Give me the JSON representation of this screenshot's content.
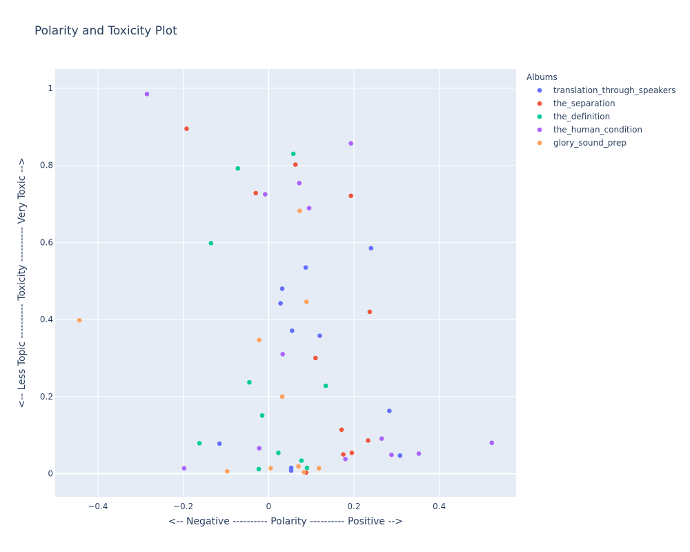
{
  "chart_data": {
    "type": "scatter",
    "title": "Polarity and Toxicity Plot",
    "xlabel": "<-- Negative ---------- Polarity ---------- Positive -->",
    "ylabel": "<-- Less Topic ---------- Toxicity ---------- Very Toxic -->",
    "xlim": [
      -0.5,
      0.58
    ],
    "ylim": [
      -0.06,
      1.05
    ],
    "xticks": [
      -0.4,
      -0.2,
      0,
      0.2,
      0.4
    ],
    "xtick_labels": [
      "−0.4",
      "−0.2",
      "0",
      "0.2",
      "0.4"
    ],
    "yticks": [
      0,
      0.2,
      0.4,
      0.6,
      0.8,
      1
    ],
    "ytick_labels": [
      "0",
      "0.2",
      "0.4",
      "0.6",
      "0.8",
      "1"
    ],
    "grid": true,
    "legend": {
      "title": "Albums",
      "placement": "top-right, outside plot"
    },
    "series": [
      {
        "name": "translation_through_speakers",
        "color": "#636efa",
        "points": [
          [
            0.24,
            0.585
          ],
          [
            0.087,
            0.535
          ],
          [
            0.032,
            0.48
          ],
          [
            0.028,
            0.442
          ],
          [
            0.055,
            0.371
          ],
          [
            0.12,
            0.358
          ],
          [
            0.283,
            0.163
          ],
          [
            -0.115,
            0.078
          ],
          [
            0.053,
            0.015
          ],
          [
            0.053,
            0.008
          ],
          [
            0.308,
            0.047
          ]
        ]
      },
      {
        "name": "the_separation",
        "color": "#ef553b",
        "points": [
          [
            -0.192,
            0.895
          ],
          [
            0.063,
            0.802
          ],
          [
            -0.03,
            0.728
          ],
          [
            0.193,
            0.721
          ],
          [
            0.237,
            0.42
          ],
          [
            0.11,
            0.3
          ],
          [
            0.171,
            0.114
          ],
          [
            0.233,
            0.086
          ],
          [
            0.175,
            0.05
          ],
          [
            0.195,
            0.054
          ],
          [
            0.088,
            0.003
          ]
        ]
      },
      {
        "name": "the_definition",
        "color": "#00cc96",
        "points": [
          [
            0.058,
            0.83
          ],
          [
            -0.072,
            0.792
          ],
          [
            -0.135,
            0.598
          ],
          [
            -0.045,
            0.237
          ],
          [
            0.134,
            0.228
          ],
          [
            -0.015,
            0.151
          ],
          [
            -0.162,
            0.079
          ],
          [
            0.023,
            0.054
          ],
          [
            0.077,
            0.034
          ],
          [
            -0.023,
            0.012
          ],
          [
            0.09,
            0.015
          ]
        ]
      },
      {
        "name": "the_human_condition",
        "color": "#ab63fa",
        "points": [
          [
            -0.285,
            0.985
          ],
          [
            0.193,
            0.857
          ],
          [
            0.072,
            0.754
          ],
          [
            -0.008,
            0.725
          ],
          [
            0.095,
            0.689
          ],
          [
            0.033,
            0.31
          ],
          [
            0.265,
            0.091
          ],
          [
            0.523,
            0.08
          ],
          [
            -0.022,
            0.066
          ],
          [
            0.288,
            0.049
          ],
          [
            0.352,
            0.052
          ],
          [
            0.18,
            0.038
          ],
          [
            -0.198,
            0.014
          ]
        ]
      },
      {
        "name": "glory_sound_prep",
        "color": "#ffa15a",
        "points": [
          [
            0.073,
            0.682
          ],
          [
            0.089,
            0.446
          ],
          [
            -0.443,
            0.398
          ],
          [
            -0.022,
            0.347
          ],
          [
            0.032,
            0.2
          ],
          [
            0.07,
            0.019
          ],
          [
            0.118,
            0.014
          ],
          [
            0.005,
            0.014
          ],
          [
            -0.097,
            0.006
          ],
          [
            0.083,
            0.004
          ]
        ]
      }
    ]
  }
}
